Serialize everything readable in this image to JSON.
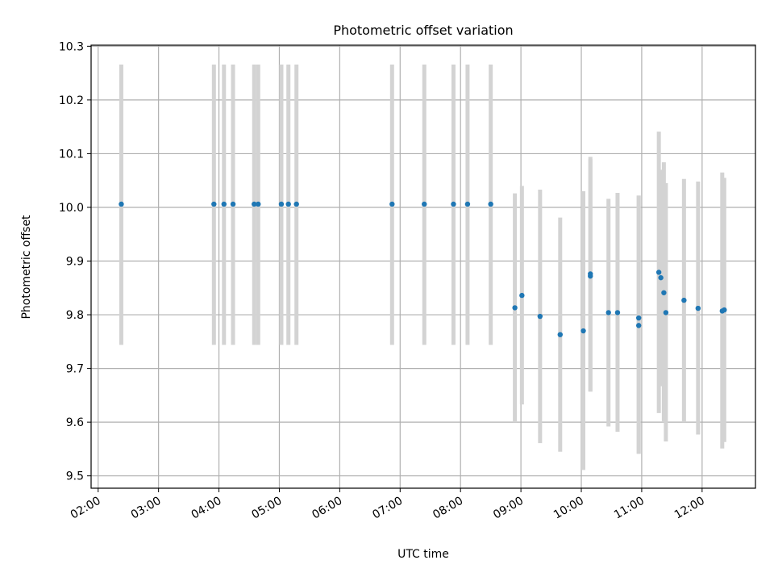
{
  "chart_data": {
    "type": "scatter",
    "title": "Photometric offset variation",
    "xlabel": "UTC time",
    "ylabel": "Photometric offset",
    "xlim": [
      "01:53",
      "12:53"
    ],
    "ylim": [
      9.477,
      10.302
    ],
    "grid": true,
    "x_ticks": [
      "02:00",
      "03:00",
      "04:00",
      "05:00",
      "06:00",
      "07:00",
      "08:00",
      "09:00",
      "10:00",
      "11:00",
      "12:00"
    ],
    "y_ticks": [
      9.5,
      9.6,
      9.7,
      9.8,
      9.9,
      10.0,
      10.1,
      10.2,
      10.3
    ],
    "y_tick_labels": [
      "9.5",
      "9.6",
      "9.7",
      "9.8",
      "9.9",
      "10.0",
      "10.1",
      "10.2",
      "10.3"
    ],
    "series": [
      {
        "marker_color": "#1f77b4",
        "errorbar_color": "#d3d3d3",
        "points": [
          {
            "x": "02:23",
            "y": 10.006,
            "ylow": 9.744,
            "yhigh": 10.266
          },
          {
            "x": "03:55",
            "y": 10.006,
            "ylow": 9.744,
            "yhigh": 10.266
          },
          {
            "x": "04:05",
            "y": 10.006,
            "ylow": 9.744,
            "yhigh": 10.266
          },
          {
            "x": "04:14",
            "y": 10.006,
            "ylow": 9.744,
            "yhigh": 10.266
          },
          {
            "x": "04:35",
            "y": 10.006,
            "ylow": 9.744,
            "yhigh": 10.266
          },
          {
            "x": "04:39",
            "y": 10.006,
            "ylow": 9.744,
            "yhigh": 10.266
          },
          {
            "x": "05:02",
            "y": 10.006,
            "ylow": 9.744,
            "yhigh": 10.266
          },
          {
            "x": "05:09",
            "y": 10.006,
            "ylow": 9.744,
            "yhigh": 10.266
          },
          {
            "x": "05:17",
            "y": 10.006,
            "ylow": 9.744,
            "yhigh": 10.266
          },
          {
            "x": "06:52",
            "y": 10.006,
            "ylow": 9.744,
            "yhigh": 10.266
          },
          {
            "x": "07:24",
            "y": 10.006,
            "ylow": 9.744,
            "yhigh": 10.266
          },
          {
            "x": "07:53",
            "y": 10.006,
            "ylow": 9.744,
            "yhigh": 10.266
          },
          {
            "x": "08:07",
            "y": 10.006,
            "ylow": 9.744,
            "yhigh": 10.266
          },
          {
            "x": "08:30",
            "y": 10.006,
            "ylow": 9.744,
            "yhigh": 10.266
          },
          {
            "x": "08:54",
            "y": 9.813,
            "ylow": 9.6,
            "yhigh": 10.026
          },
          {
            "x": "09:01",
            "y": 9.836,
            "ylow": 9.633,
            "yhigh": 10.04
          },
          {
            "x": "09:19",
            "y": 9.797,
            "ylow": 9.561,
            "yhigh": 10.033
          },
          {
            "x": "09:39",
            "y": 9.763,
            "ylow": 9.545,
            "yhigh": 9.981
          },
          {
            "x": "10:02",
            "y": 9.77,
            "ylow": 9.511,
            "yhigh": 10.03
          },
          {
            "x": "10:09",
            "y": 9.876,
            "ylow": 9.657,
            "yhigh": 10.094
          },
          {
            "x": "10:09",
            "y": 9.872,
            "ylow": 9.657,
            "yhigh": 10.09
          },
          {
            "x": "10:27",
            "y": 9.804,
            "ylow": 9.592,
            "yhigh": 10.016
          },
          {
            "x": "10:36",
            "y": 9.804,
            "ylow": 9.582,
            "yhigh": 10.027
          },
          {
            "x": "10:57",
            "y": 9.794,
            "ylow": 9.541,
            "yhigh": 10.022
          },
          {
            "x": "10:57",
            "y": 9.78,
            "ylow": 9.541,
            "yhigh": 10.022
          },
          {
            "x": "11:17",
            "y": 9.879,
            "ylow": 9.617,
            "yhigh": 10.141
          },
          {
            "x": "11:19",
            "y": 9.869,
            "ylow": 9.667,
            "yhigh": 10.07
          },
          {
            "x": "11:22",
            "y": 9.841,
            "ylow": 9.6,
            "yhigh": 10.084
          },
          {
            "x": "11:24",
            "y": 9.804,
            "ylow": 9.564,
            "yhigh": 10.045
          },
          {
            "x": "11:42",
            "y": 9.827,
            "ylow": 9.6,
            "yhigh": 10.053
          },
          {
            "x": "11:56",
            "y": 9.812,
            "ylow": 9.577,
            "yhigh": 10.048
          },
          {
            "x": "12:20",
            "y": 9.807,
            "ylow": 9.551,
            "yhigh": 10.065
          },
          {
            "x": "12:22",
            "y": 9.809,
            "ylow": 9.563,
            "yhigh": 10.055
          }
        ]
      }
    ]
  }
}
